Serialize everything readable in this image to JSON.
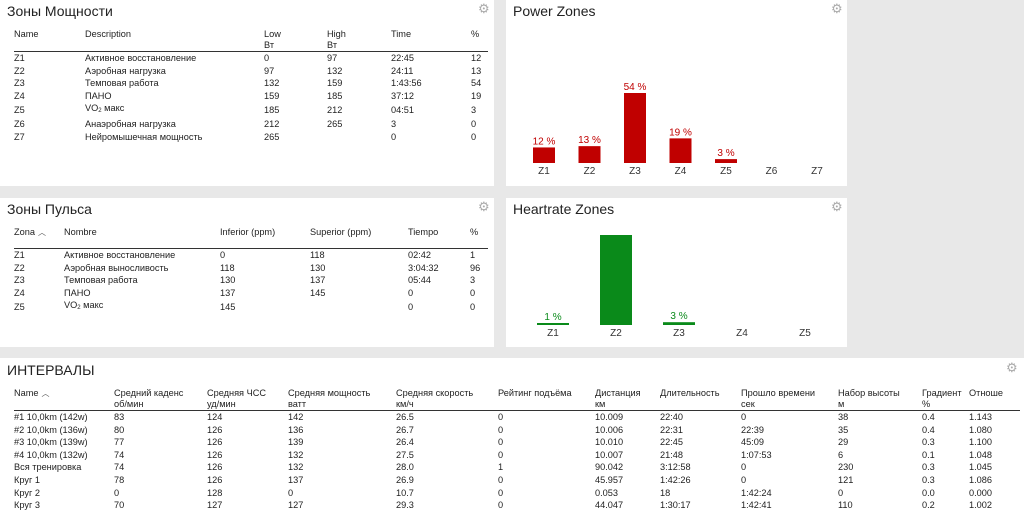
{
  "power_table": {
    "title": "Зоны Мощности",
    "headers": {
      "name": "Name",
      "desc": "Description",
      "low": "Low",
      "low_unit": "Вт",
      "high": "High",
      "high_unit": "Вт",
      "time": "Time",
      "pct": "%"
    },
    "rows": [
      [
        "Z1",
        "Активное восстановление",
        "0",
        "97",
        "22:45",
        "12"
      ],
      [
        "Z2",
        "Аэробная нагрузка",
        "97",
        "132",
        "24:11",
        "13"
      ],
      [
        "Z3",
        "Темповая работа",
        "132",
        "159",
        "1:43:56",
        "54"
      ],
      [
        "Z4",
        "ПАНО",
        "159",
        "185",
        "37:12",
        "19"
      ],
      [
        "Z5",
        "VO",
        "185",
        "212",
        "04:51",
        "3"
      ],
      [
        "Z6",
        "Анаэробная нагрузка",
        "212",
        "265",
        "3",
        "0"
      ],
      [
        "Z7",
        "Нейромышечная мощность",
        "265",
        "",
        "0",
        "0"
      ]
    ],
    "vo2_suffix": {
      "sub": "2",
      "text": " макс"
    }
  },
  "power_chart": {
    "title": "Power Zones",
    "color": "#c00000",
    "chart_data": {
      "type": "bar",
      "categories": [
        "Z1",
        "Z2",
        "Z3",
        "Z4",
        "Z5",
        "Z6",
        "Z7"
      ],
      "values": [
        12,
        13,
        54,
        19,
        3,
        0,
        0
      ],
      "labels": [
        "12 %",
        "13 %",
        "54 %",
        "19 %",
        "3 %",
        "",
        ""
      ]
    }
  },
  "hr_table": {
    "title": "Зоны Пульса",
    "headers": {
      "zone": "Zona",
      "name": "Nombre",
      "inf": "Inferior (ppm)",
      "sup": "Superior (ppm)",
      "time": "Tiempo",
      "pct": "%"
    },
    "rows": [
      [
        "Z1",
        "Активное восстановление",
        "0",
        "118",
        "02:42",
        "1"
      ],
      [
        "Z2",
        "Аэробная выносливость",
        "118",
        "130",
        "3:04:32",
        "96"
      ],
      [
        "Z3",
        "Темповая работа",
        "130",
        "137",
        "05:44",
        "3"
      ],
      [
        "Z4",
        "ПАНО",
        "137",
        "145",
        "0",
        "0"
      ],
      [
        "Z5",
        "VO",
        "145",
        "",
        "0",
        "0"
      ]
    ],
    "vo2_suffix": {
      "sub": "2",
      "text": " макс"
    }
  },
  "hr_chart": {
    "title": "Heartrate Zones",
    "color": "#0a8a1a",
    "chart_data": {
      "type": "bar",
      "categories": [
        "Z1",
        "Z2",
        "Z3",
        "Z4",
        "Z5"
      ],
      "values": [
        1,
        96,
        3,
        0,
        0
      ],
      "labels": [
        "1 %",
        "",
        "3 %",
        "",
        ""
      ]
    }
  },
  "intervals": {
    "title": "ИНТЕРВАЛЫ",
    "headers": [
      [
        "Name",
        ""
      ],
      [
        "Средний каденс",
        "об/мин"
      ],
      [
        "Средняя ЧСС",
        "уд/мин"
      ],
      [
        "Средняя мощность",
        "ватт"
      ],
      [
        "Средняя скорость",
        "км/ч"
      ],
      [
        "Рейтинг подъёма",
        ""
      ],
      [
        "Дистанция",
        "км"
      ],
      [
        "Длительность",
        ""
      ],
      [
        "Прошло времени",
        "сек"
      ],
      [
        "Набор высоты",
        "м"
      ],
      [
        "Градиент",
        "%"
      ],
      [
        "Отноше",
        ""
      ]
    ],
    "rows": [
      [
        "#1 10,0km  (142w)",
        "83",
        "124",
        "142",
        "26.5",
        "0",
        "10.009",
        "22:40",
        "0",
        "38",
        "0.4",
        "1.143"
      ],
      [
        "#2 10,0km  (136w)",
        "80",
        "126",
        "136",
        "26.7",
        "0",
        "10.006",
        "22:31",
        "22:39",
        "35",
        "0.4",
        "1.080"
      ],
      [
        "#3 10,0km  (139w)",
        "77",
        "126",
        "139",
        "26.4",
        "0",
        "10.010",
        "22:45",
        "45:09",
        "29",
        "0.3",
        "1.100"
      ],
      [
        "#4 10,0km  (132w)",
        "74",
        "126",
        "132",
        "27.5",
        "0",
        "10.007",
        "21:48",
        "1:07:53",
        "6",
        "0.1",
        "1.048"
      ],
      [
        "Вся тренировка",
        "74",
        "126",
        "132",
        "28.0",
        "1",
        "90.042",
        "3:12:58",
        "0",
        "230",
        "0.3",
        "1.045"
      ],
      [
        "Круг 1",
        "78",
        "126",
        "137",
        "26.9",
        "0",
        "45.957",
        "1:42:26",
        "0",
        "121",
        "0.3",
        "1.086"
      ],
      [
        "Круг 2",
        "0",
        "128",
        "0",
        "10.7",
        "0",
        "0.053",
        "18",
        "1:42:24",
        "0",
        "0.0",
        "0.000"
      ],
      [
        "Круг 3",
        "70",
        "127",
        "127",
        "29.3",
        "0",
        "44.047",
        "1:30:17",
        "1:42:41",
        "110",
        "0.2",
        "1.002"
      ]
    ]
  },
  "icons": {
    "gear": "gear-icon",
    "sort": "sort-up-icon"
  }
}
